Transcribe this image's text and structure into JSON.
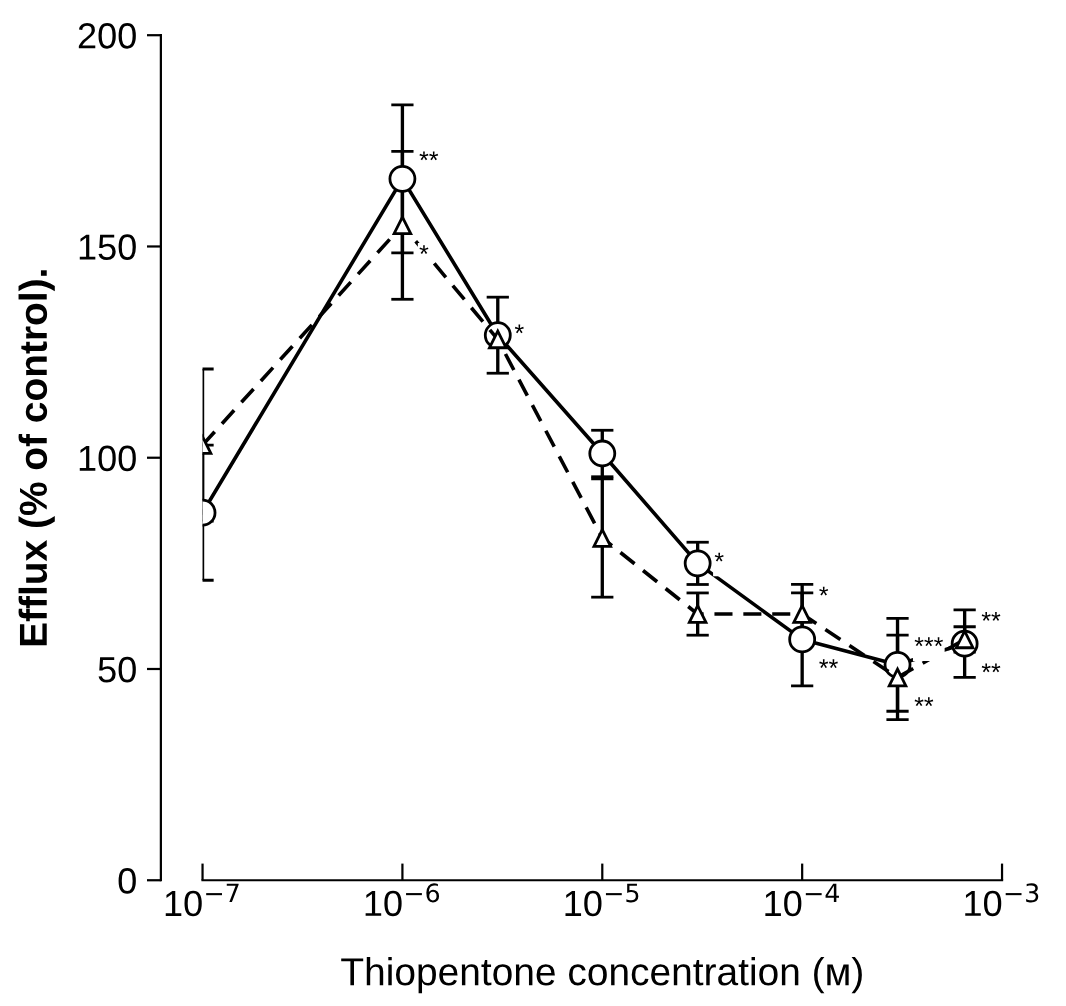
{
  "chart_data": {
    "type": "line",
    "xlabel": "Thiopentone concentration (м)",
    "ylabel": "Efflux (% of control).",
    "log": "x",
    "xlim": [
      1e-07,
      0.001
    ],
    "ylim": [
      0,
      200
    ],
    "xticks": [
      {
        "value": 1e-07,
        "label": "10$^{−7}$"
      },
      {
        "value": 1e-06,
        "label": "10$^{−6}$"
      },
      {
        "value": 1e-05,
        "label": "10$^{−5}$"
      },
      {
        "value": 0.0001,
        "label": "10$^{−4}$"
      },
      {
        "value": 0.001,
        "label": "10$^{−3}$"
      }
    ],
    "yticks": [
      0,
      50,
      100,
      150,
      200
    ],
    "grid": false,
    "legend": false,
    "x": [
      1e-07,
      1e-06,
      3e-06,
      1e-05,
      3e-05,
      0.0001,
      0.0003,
      0.00065
    ],
    "series": [
      {
        "color": "#000000",
        "marker": "circle",
        "line_style": "solid",
        "values": [
          87,
          166,
          129,
          101,
          75,
          57,
          51,
          56
        ],
        "errors": [
          16,
          17.5,
          9,
          5.5,
          5,
          11,
          11,
          8
        ]
      },
      {
        "color": "#000000",
        "marker": "triangle",
        "line_style": "dashed",
        "values": [
          103,
          155,
          128,
          81,
          63,
          63,
          48,
          57
        ],
        "errors": [
          18,
          17.5,
          null,
          14,
          5,
          7,
          10,
          3
        ]
      }
    ],
    "annotations": [
      {
        "text": "**",
        "x": 1e-06,
        "y": 166
      },
      {
        "text": "*",
        "x": 1e-06,
        "y": 155
      },
      {
        "text": "*",
        "x": 3e-06,
        "y": 129
      },
      {
        "text": "*",
        "x": 3e-05,
        "y": 75
      },
      {
        "text": "*",
        "x": 0.0001,
        "y": 63
      },
      {
        "text": "**",
        "x": 0.0001,
        "y": 57
      },
      {
        "text": "***",
        "x": 0.0003,
        "y": 51
      },
      {
        "text": "**",
        "x": 0.0003,
        "y": 48
      },
      {
        "text": "**",
        "x": 0.00065,
        "y": 57
      },
      {
        "text": "**",
        "x": 0.00065,
        "y": 56
      }
    ]
  }
}
